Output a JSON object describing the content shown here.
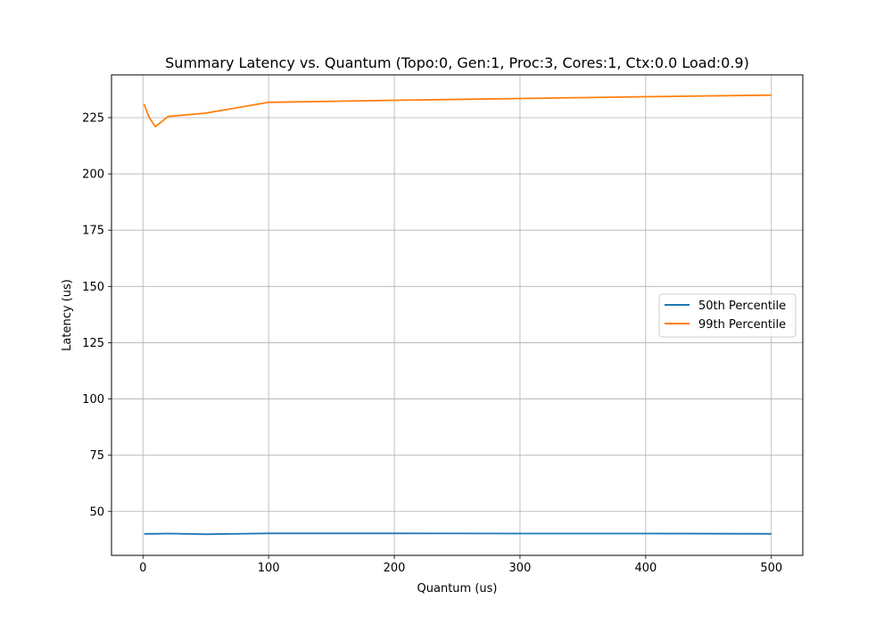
{
  "chart_data": {
    "type": "line",
    "title": "Summary Latency vs. Quantum (Topo:0, Gen:1, Proc:3, Cores:1, Ctx:0.0 Load:0.9)",
    "xlabel": "Quantum (us)",
    "ylabel": "Latency (us)",
    "xlim": [
      -25,
      525
    ],
    "ylim": [
      30.5,
      244
    ],
    "xticks": [
      0,
      100,
      200,
      300,
      400,
      500
    ],
    "yticks": [
      50,
      75,
      100,
      125,
      150,
      175,
      200,
      225
    ],
    "grid": true,
    "legend_position": "center-right",
    "series": [
      {
        "name": "50th Percentile",
        "color": "#1f77b4",
        "x": [
          1,
          5,
          10,
          20,
          50,
          100,
          200,
          300,
          400,
          500
        ],
        "y": [
          40.0,
          40.1,
          40.1,
          40.2,
          39.9,
          40.3,
          40.3,
          40.2,
          40.2,
          40.1
        ]
      },
      {
        "name": "99th Percentile",
        "color": "#ff7f0e",
        "x": [
          1,
          5,
          10,
          20,
          50,
          100,
          200,
          300,
          400,
          500
        ],
        "y": [
          231.0,
          225.0,
          221.0,
          225.5,
          227.0,
          231.8,
          232.7,
          233.5,
          234.3,
          235.0
        ]
      }
    ]
  }
}
